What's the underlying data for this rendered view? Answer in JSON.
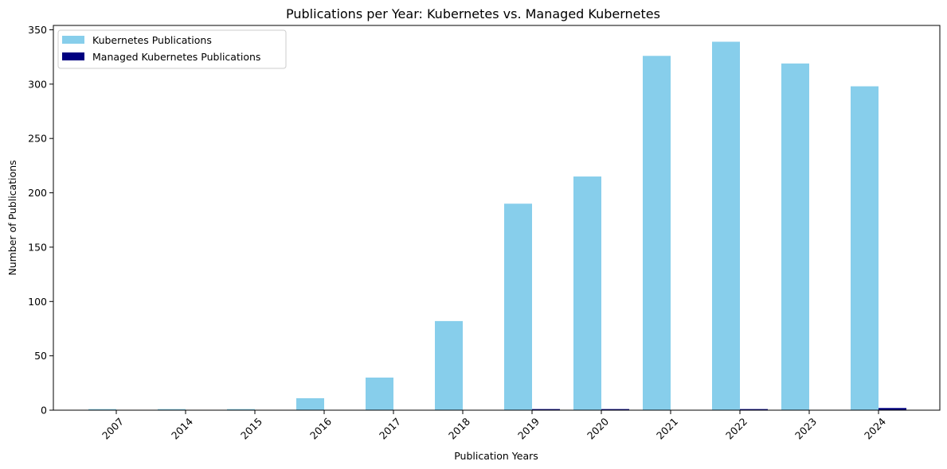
{
  "chart_data": {
    "type": "bar",
    "title": "Publications per Year: Kubernetes vs. Managed Kubernetes",
    "xlabel": "Publication Years",
    "ylabel": "Number of Publications",
    "categories": [
      "2007",
      "2014",
      "2015",
      "2016",
      "2017",
      "2018",
      "2019",
      "2020",
      "2021",
      "2022",
      "2023",
      "2024"
    ],
    "series": [
      {
        "name": "Kubernetes Publications",
        "color": "#87ceeb",
        "values": [
          1,
          1,
          1,
          11,
          30,
          82,
          190,
          215,
          326,
          339,
          319,
          298
        ]
      },
      {
        "name": "Managed Kubernetes Publications",
        "color": "#000080",
        "values": [
          0,
          0,
          0,
          0,
          0,
          0,
          1,
          1,
          0,
          1,
          0,
          2
        ]
      }
    ],
    "ylim": [
      0,
      354
    ],
    "yticks": [
      0,
      50,
      100,
      150,
      200,
      250,
      300,
      350
    ],
    "grid": false,
    "legend_position": "top-left"
  }
}
